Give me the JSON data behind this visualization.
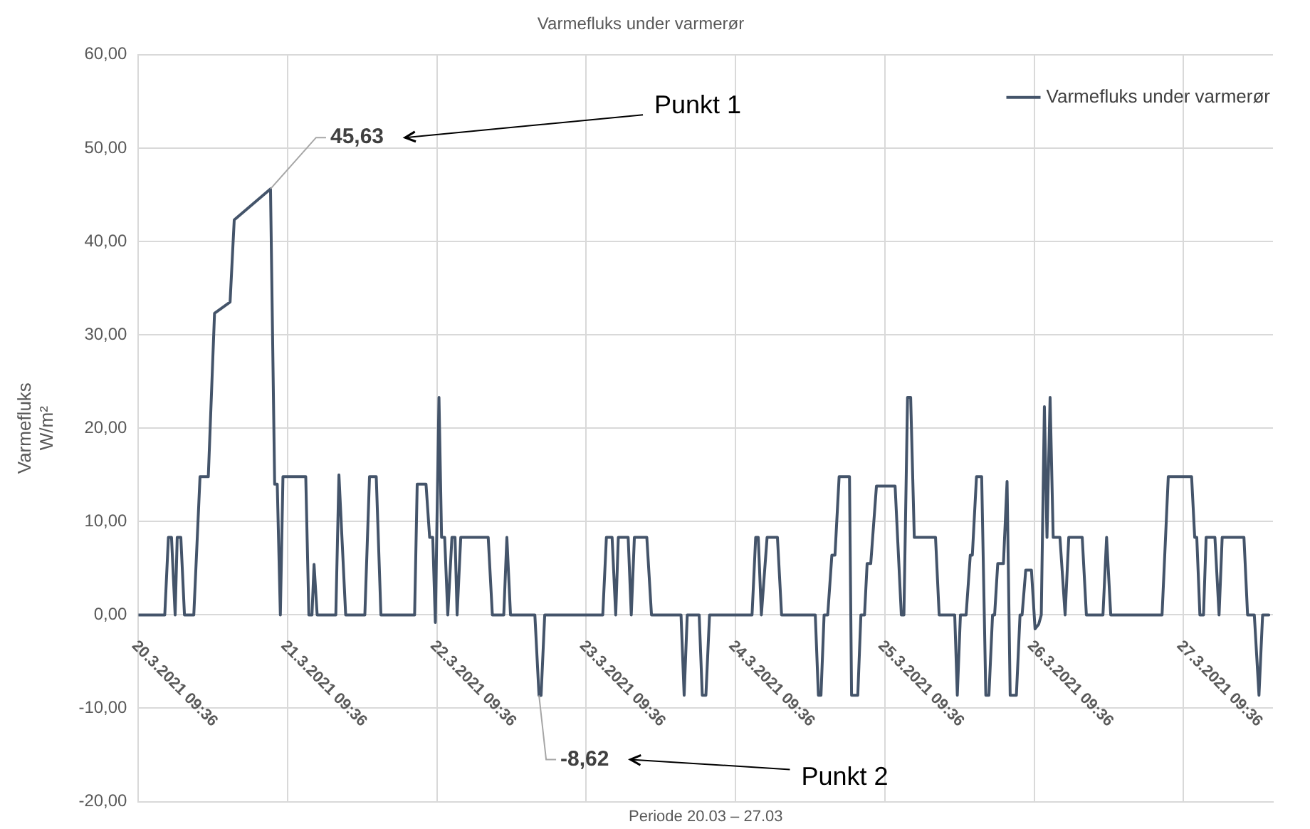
{
  "chart_data": {
    "type": "line",
    "title": "Varmefluks under varmerør",
    "xlabel": "Periode 20.03 – 27.03",
    "ylabel": "Varmefluks W/m²",
    "legend": "top right",
    "grid": true,
    "marker": "none",
    "line_style": "solid",
    "xlim": [
      "2021-03-20T09:36",
      "2021-03-28T00:00"
    ],
    "xticks": [
      {
        "value": "2021-03-20T09:36",
        "label": "20.3.2021 09:36"
      },
      {
        "value": "2021-03-21T09:36",
        "label": "21.3.2021 09:36"
      },
      {
        "value": "2021-03-22T09:36",
        "label": "22.3.2021 09:36"
      },
      {
        "value": "2021-03-23T09:36",
        "label": "23.3.2021 09:36"
      },
      {
        "value": "2021-03-24T09:36",
        "label": "24.3.2021 09:36"
      },
      {
        "value": "2021-03-25T09:36",
        "label": "25.3.2021 09:36"
      },
      {
        "value": "2021-03-26T09:36",
        "label": "26.3.2021 09:36"
      },
      {
        "value": "2021-03-27T09:36",
        "label": "27.3.2021 09:36"
      }
    ],
    "ylim": [
      -20,
      60
    ],
    "yticks": [
      {
        "value": -20,
        "label": "-20,00"
      },
      {
        "value": -10,
        "label": "-10,00"
      },
      {
        "value": 0,
        "label": "0,00"
      },
      {
        "value": 10,
        "label": "10,00"
      },
      {
        "value": 20,
        "label": "20,00"
      },
      {
        "value": 30,
        "label": "30,00"
      },
      {
        "value": 40,
        "label": "40,00"
      },
      {
        "value": 50,
        "label": "50,00"
      },
      {
        "value": 60,
        "label": "60,00"
      }
    ],
    "annotations": [
      {
        "text": "45,63",
        "x": "2021-03-21T06:50",
        "y": 45.63
      },
      "Punkt 1",
      {
        "text": "-8,62",
        "x": "2021-03-23T02:00",
        "y": -8.62
      },
      "Punkt 2"
    ],
    "series": [
      {
        "name": "Varmefluks under varmerør",
        "color": "#44546a",
        "x": [
          "2021-03-20T09:36",
          "2021-03-20T13:50",
          "2021-03-20T14:25",
          "2021-03-20T14:55",
          "2021-03-20T15:30",
          "2021-03-20T15:50",
          "2021-03-20T16:25",
          "2021-03-20T17:00",
          "2021-03-20T18:30",
          "2021-03-20T19:30",
          "2021-03-20T20:50",
          "2021-03-20T21:50",
          "2021-03-21T00:20",
          "2021-03-21T01:00",
          "2021-03-21T06:50",
          "2021-03-21T07:30",
          "2021-03-21T07:55",
          "2021-03-21T08:25",
          "2021-03-21T08:50",
          "2021-03-21T12:30",
          "2021-03-21T13:00",
          "2021-03-21T13:30",
          "2021-03-21T13:50",
          "2021-03-21T14:20",
          "2021-03-21T17:20",
          "2021-03-21T17:50",
          "2021-03-21T18:55",
          "2021-03-21T22:00",
          "2021-03-21T22:45",
          "2021-03-21T23:50",
          "2021-03-22T00:35",
          "2021-03-22T06:00",
          "2021-03-22T06:25",
          "2021-03-22T07:50",
          "2021-03-22T08:25",
          "2021-03-22T08:55",
          "2021-03-22T09:20",
          "2021-03-22T09:55",
          "2021-03-22T10:20",
          "2021-03-22T10:50",
          "2021-03-22T11:20",
          "2021-03-22T12:00",
          "2021-03-22T12:30",
          "2021-03-22T12:50",
          "2021-03-22T13:25",
          "2021-03-22T17:50",
          "2021-03-22T18:30",
          "2021-03-22T20:20",
          "2021-03-22T20:50",
          "2021-03-22T21:25",
          "2021-03-23T01:20",
          "2021-03-23T02:00",
          "2021-03-23T02:20",
          "2021-03-23T02:55",
          "2021-03-23T12:15",
          "2021-03-23T12:50",
          "2021-03-23T13:45",
          "2021-03-23T14:20",
          "2021-03-23T14:45",
          "2021-03-23T16:20",
          "2021-03-23T16:50",
          "2021-03-23T17:20",
          "2021-03-23T19:20",
          "2021-03-23T20:05",
          "2021-03-24T00:50",
          "2021-03-24T01:20",
          "2021-03-24T01:50",
          "2021-03-24T03:45",
          "2021-03-24T04:15",
          "2021-03-24T04:50",
          "2021-03-24T05:25",
          "2021-03-24T12:15",
          "2021-03-24T12:50",
          "2021-03-24T13:15",
          "2021-03-24T13:45",
          "2021-03-24T14:40",
          "2021-03-24T16:20",
          "2021-03-24T17:00",
          "2021-03-24T22:25",
          "2021-03-24T22:55",
          "2021-03-24T23:20",
          "2021-03-24T23:50",
          "2021-03-25T00:25",
          "2021-03-25T01:05",
          "2021-03-25T01:35",
          "2021-03-25T02:15",
          "2021-03-25T03:55",
          "2021-03-25T04:15",
          "2021-03-25T05:15",
          "2021-03-25T05:45",
          "2021-03-25T06:20",
          "2021-03-25T06:45",
          "2021-03-25T07:20",
          "2021-03-25T08:15",
          "2021-03-25T11:15",
          "2021-03-25T12:15",
          "2021-03-25T12:40",
          "2021-03-25T13:15",
          "2021-03-25T13:45",
          "2021-03-25T14:20",
          "2021-03-25T17:45",
          "2021-03-25T18:20",
          "2021-03-25T20:50",
          "2021-03-25T21:15",
          "2021-03-25T21:45",
          "2021-03-25T22:40",
          "2021-03-25T23:20",
          "2021-03-25T23:40",
          "2021-03-26T00:20",
          "2021-03-26T01:10",
          "2021-03-26T01:50",
          "2021-03-26T02:20",
          "2021-03-26T02:55",
          "2021-03-26T03:15",
          "2021-03-26T03:45",
          "2021-03-26T04:40",
          "2021-03-26T05:15",
          "2021-03-26T05:45",
          "2021-03-26T06:45",
          "2021-03-26T07:20",
          "2021-03-26T07:40",
          "2021-03-26T08:15",
          "2021-03-26T09:10",
          "2021-03-26T09:45",
          "2021-03-26T10:20",
          "2021-03-26T10:45",
          "2021-03-26T11:15",
          "2021-03-26T11:40",
          "2021-03-26T12:10",
          "2021-03-26T12:40",
          "2021-03-26T13:45",
          "2021-03-26T14:35",
          "2021-03-26T15:10",
          "2021-03-26T17:20",
          "2021-03-26T18:00",
          "2021-03-26T20:40",
          "2021-03-26T21:15",
          "2021-03-26T21:55",
          "2021-03-27T06:10",
          "2021-03-27T07:10",
          "2021-03-27T10:55",
          "2021-03-27T11:25",
          "2021-03-27T11:45",
          "2021-03-27T12:15",
          "2021-03-27T12:50",
          "2021-03-27T13:15",
          "2021-03-27T14:40",
          "2021-03-27T15:20",
          "2021-03-27T15:50",
          "2021-03-27T19:20",
          "2021-03-27T19:55",
          "2021-03-27T21:00",
          "2021-03-27T21:45",
          "2021-03-27T22:20",
          "2021-03-27T23:20"
        ],
        "values": [
          0,
          0,
          8.3,
          8.3,
          0,
          8.3,
          8.3,
          0,
          0,
          14.8,
          14.8,
          32.3,
          33.5,
          42.3,
          45.63,
          14,
          14,
          0,
          14.8,
          14.8,
          0,
          0,
          5.4,
          0,
          0,
          15,
          0,
          0,
          14.8,
          14.8,
          0,
          0,
          14,
          14,
          8.3,
          8.3,
          -0.8,
          23.3,
          8.3,
          8.3,
          0,
          8.3,
          8.3,
          0,
          8.3,
          8.3,
          0,
          0,
          8.3,
          0,
          0,
          -8.62,
          -8.62,
          0,
          0,
          8.3,
          8.3,
          0,
          8.3,
          8.3,
          0,
          8.3,
          8.3,
          0,
          0,
          -8.6,
          0,
          0,
          -8.6,
          -8.6,
          0,
          0,
          8.3,
          8.3,
          0,
          8.3,
          8.3,
          0,
          0,
          -8.6,
          -8.6,
          0,
          0,
          6.4,
          6.4,
          14.8,
          14.8,
          -8.6,
          -8.6,
          0,
          0,
          5.5,
          5.5,
          13.8,
          13.8,
          0,
          0,
          23.3,
          23.3,
          8.3,
          8.3,
          0,
          0,
          -8.6,
          0,
          0,
          6.4,
          6.4,
          14.8,
          14.8,
          -8.6,
          -8.6,
          0,
          0,
          5.5,
          5.5,
          14.3,
          -8.6,
          -8.6,
          0,
          0,
          4.8,
          4.8,
          -1.5,
          -1,
          0,
          22.3,
          8.3,
          23.3,
          8.3,
          8.3,
          0,
          8.3,
          8.3,
          0,
          0,
          8.3,
          0,
          0,
          14.8,
          14.8,
          8.3,
          8.3,
          0,
          0,
          8.3,
          8.3,
          0,
          8.3,
          8.3,
          0,
          0,
          -8.6,
          0,
          0
        ]
      }
    ]
  }
}
